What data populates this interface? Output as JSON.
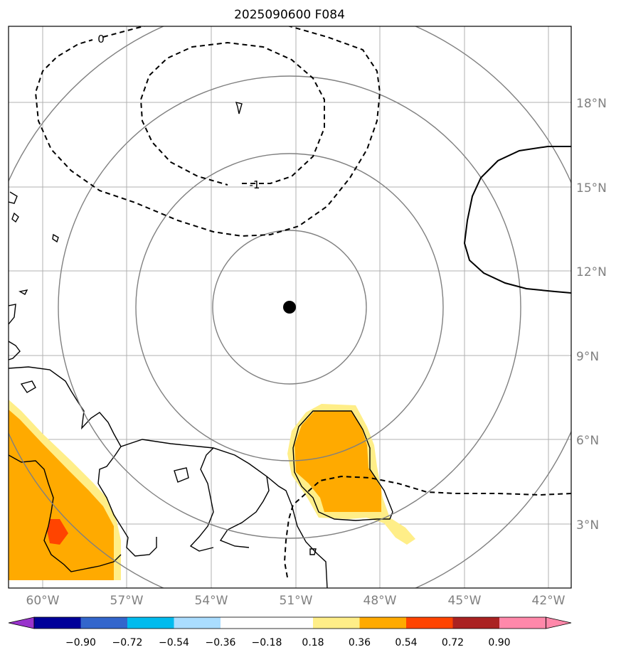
{
  "title": "2025090600 F084",
  "lat_labels": [
    "18°N",
    "15°N",
    "12°N",
    "9°N",
    "6°N",
    "3°N"
  ],
  "lon_labels": [
    "60°W",
    "57°W",
    "54°W",
    "51°W",
    "48°W",
    "45°W",
    "42°W"
  ],
  "contour_labels": [
    "0",
    "-1"
  ],
  "colorbar": {
    "colors": [
      "#9933cc",
      "#000099",
      "#3366cc",
      "#00bbee",
      "#aaddff",
      "#ffffff",
      "#ffee88",
      "#ffaa00",
      "#ff4400",
      "#aa2222",
      "#ff88aa"
    ],
    "tick_labels": [
      "−0.90",
      "−0.72",
      "−0.54",
      "−0.36",
      "−0.18",
      "0.18",
      "0.36",
      "0.54",
      "0.72",
      "0.90"
    ]
  },
  "colors": {
    "range_rings": "#808080",
    "grid": "#b0b0b0",
    "center_marker": "#000000"
  }
}
